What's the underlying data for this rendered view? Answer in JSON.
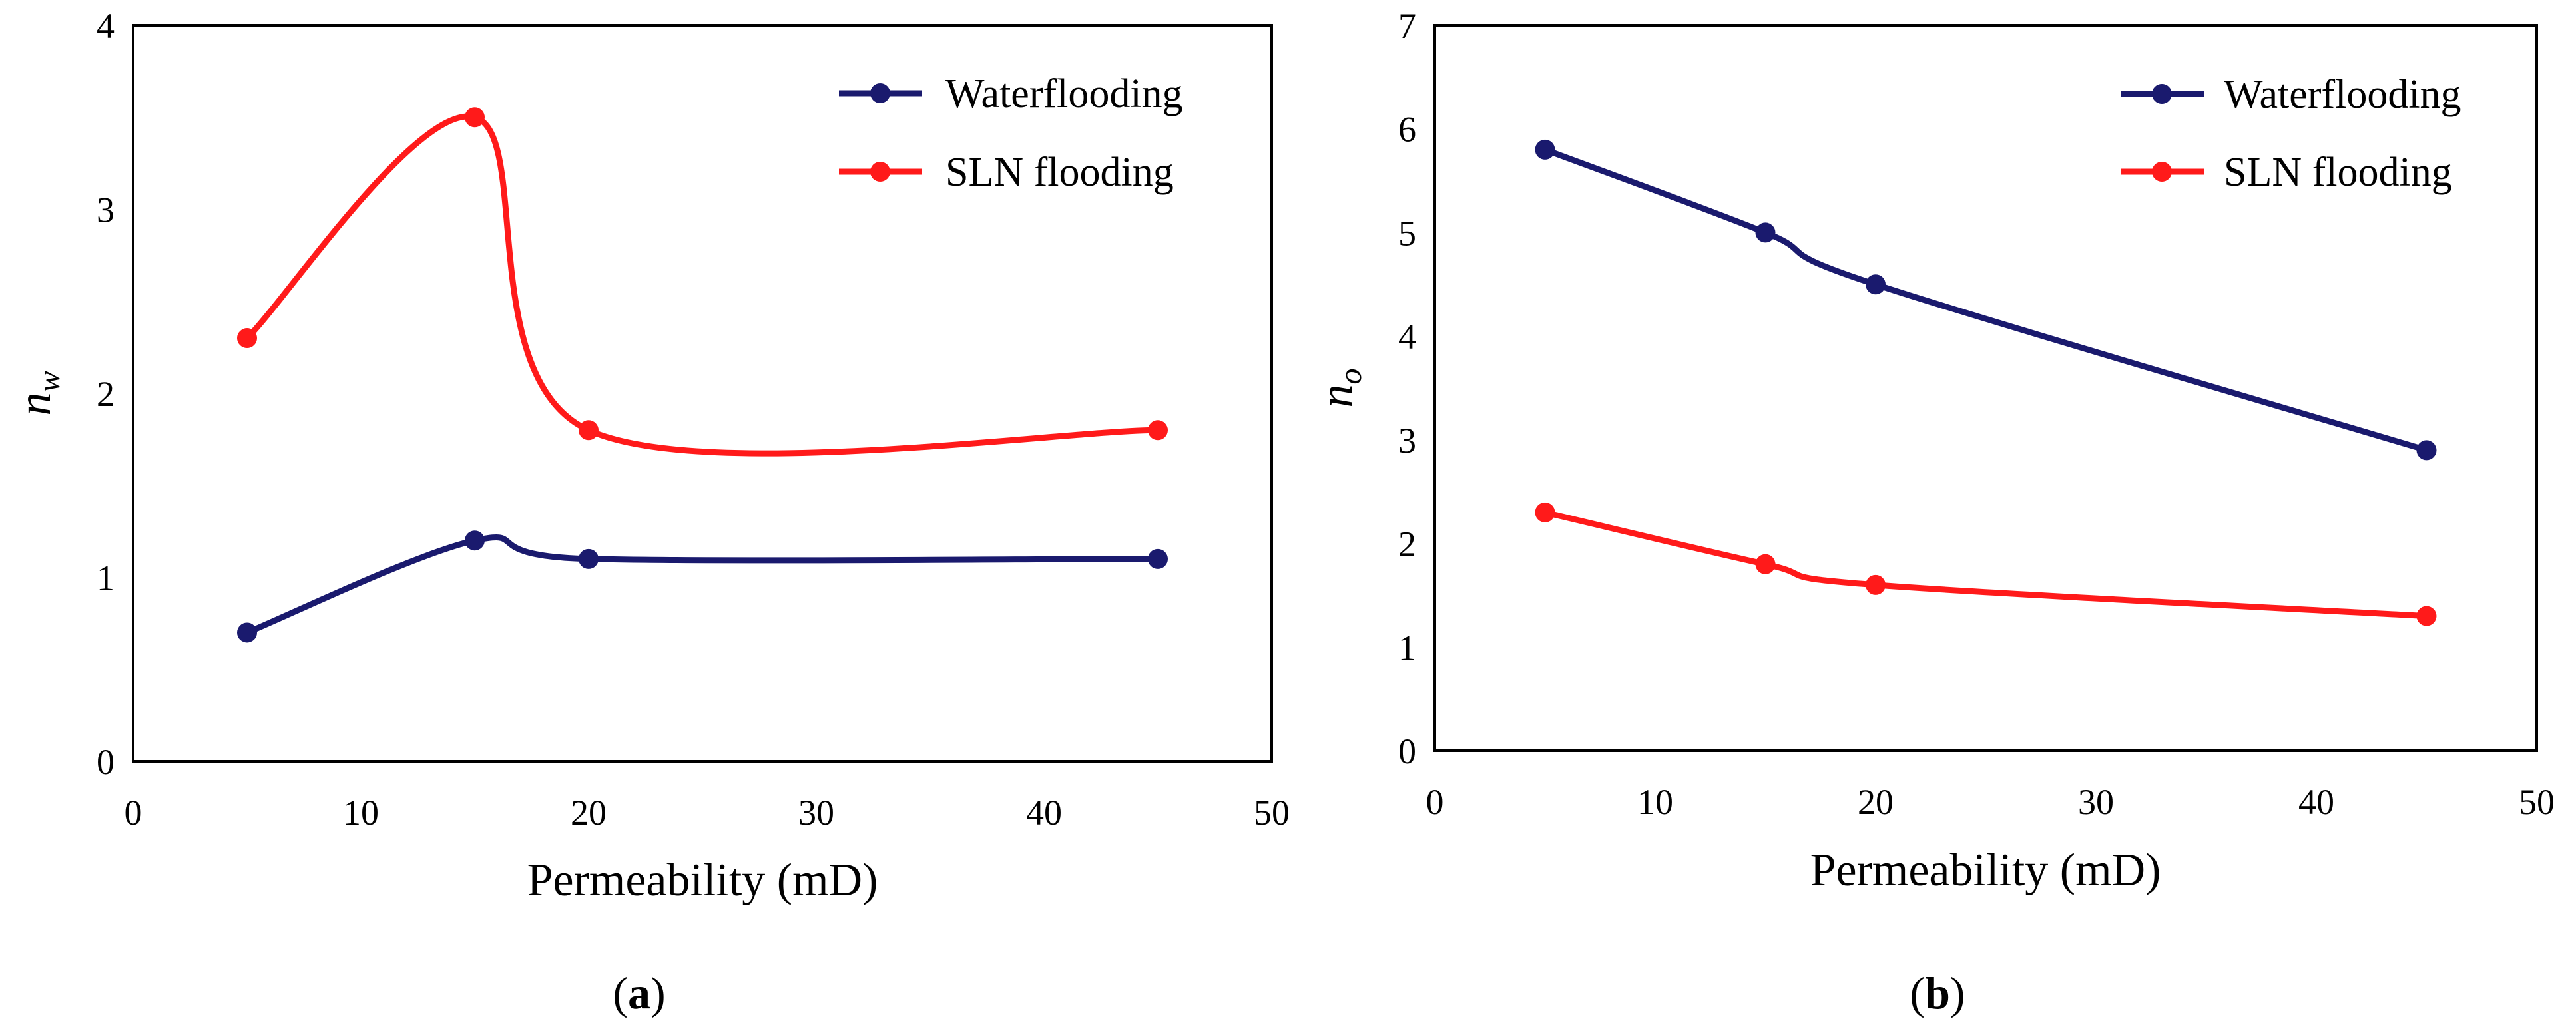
{
  "figure": {
    "panel_labels": [
      "a",
      "b"
    ]
  },
  "chart_data": [
    {
      "type": "line",
      "panel": "a",
      "xlabel": "Permeability  (mD)",
      "ylabel_var": "n",
      "ylabel_sub": "w",
      "xlim": [
        0,
        50
      ],
      "ylim": [
        0,
        4
      ],
      "xticks": [
        "0",
        "10",
        "20",
        "30",
        "40",
        "50"
      ],
      "yticks": [
        "0",
        "1",
        "2",
        "3",
        "4"
      ],
      "legend_position": "top-right",
      "series": [
        {
          "name": "Waterflooding",
          "color": "#1a1a6e",
          "x": [
            5,
            15,
            20,
            45
          ],
          "y": [
            0.7,
            1.2,
            1.1,
            1.1
          ]
        },
        {
          "name": "SLN flooding",
          "color": "#ff1a1a",
          "x": [
            5,
            15,
            20,
            45
          ],
          "y": [
            2.3,
            3.5,
            1.8,
            1.8
          ]
        }
      ]
    },
    {
      "type": "line",
      "panel": "b",
      "xlabel": "Permeability  (mD)",
      "ylabel_var": "n",
      "ylabel_sub": "o",
      "xlim": [
        0,
        50
      ],
      "ylim": [
        0,
        7
      ],
      "xticks": [
        "0",
        "10",
        "20",
        "30",
        "40",
        "50"
      ],
      "yticks": [
        "0",
        "1",
        "2",
        "3",
        "4",
        "5",
        "6",
        "7"
      ],
      "legend_position": "top-right",
      "series": [
        {
          "name": "Waterflooding",
          "color": "#1a1a6e",
          "x": [
            5,
            15,
            20,
            45
          ],
          "y": [
            5.8,
            5.0,
            4.5,
            2.9
          ]
        },
        {
          "name": "SLN flooding",
          "color": "#ff1a1a",
          "x": [
            5,
            15,
            20,
            45
          ],
          "y": [
            2.3,
            1.8,
            1.6,
            1.3
          ]
        }
      ]
    }
  ]
}
